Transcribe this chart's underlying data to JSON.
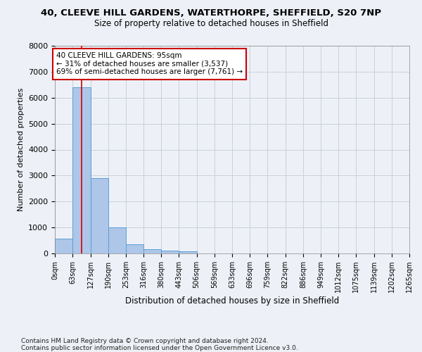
{
  "title_line1": "40, CLEEVE HILL GARDENS, WATERTHORPE, SHEFFIELD, S20 7NP",
  "title_line2": "Size of property relative to detached houses in Sheffield",
  "xlabel": "Distribution of detached houses by size in Sheffield",
  "ylabel": "Number of detached properties",
  "bar_edges": [
    0,
    63,
    127,
    190,
    253,
    316,
    380,
    443,
    506,
    569,
    633,
    696,
    759,
    822,
    886,
    949,
    1012,
    1075,
    1139,
    1202,
    1265
  ],
  "bar_heights": [
    560,
    6390,
    2910,
    1000,
    360,
    160,
    100,
    75,
    0,
    0,
    0,
    0,
    0,
    0,
    0,
    0,
    0,
    0,
    0,
    0
  ],
  "bar_color": "#aec6e8",
  "bar_edge_color": "#5a9fd4",
  "property_size": 95,
  "property_line_color": "#cc0000",
  "annotation_text": "40 CLEEVE HILL GARDENS: 95sqm\n← 31% of detached houses are smaller (3,537)\n69% of semi-detached houses are larger (7,761) →",
  "annotation_box_edgecolor": "#cc0000",
  "annotation_box_facecolor": "#ffffff",
  "ylim": [
    0,
    8000
  ],
  "yticks": [
    0,
    1000,
    2000,
    3000,
    4000,
    5000,
    6000,
    7000,
    8000
  ],
  "grid_color": "#c8d0dc",
  "bg_color": "#edf1f7",
  "footnote": "Contains HM Land Registry data © Crown copyright and database right 2024.\nContains public sector information licensed under the Open Government Licence v3.0.",
  "footnote_fontsize": 6.5,
  "title1_fontsize": 9.5,
  "title2_fontsize": 8.5,
  "xlabel_fontsize": 8.5,
  "ylabel_fontsize": 8.0,
  "annotation_fontsize": 7.5,
  "tick_fontsize": 7.0
}
